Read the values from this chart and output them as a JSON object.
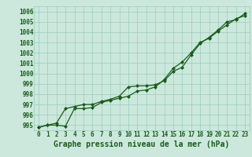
{
  "xlabel": "Graphe pression niveau de la mer (hPa)",
  "xlim": [
    -0.5,
    23.5
  ],
  "ylim": [
    994.5,
    1006.5
  ],
  "yticks": [
    995,
    996,
    997,
    998,
    999,
    1000,
    1001,
    1002,
    1003,
    1004,
    1005,
    1006
  ],
  "xticks": [
    0,
    1,
    2,
    3,
    4,
    5,
    6,
    7,
    8,
    9,
    10,
    11,
    12,
    13,
    14,
    15,
    16,
    17,
    18,
    19,
    20,
    21,
    22,
    23
  ],
  "line1": [
    994.8,
    995.0,
    995.0,
    994.9,
    996.6,
    996.6,
    996.7,
    997.2,
    997.4,
    997.6,
    997.8,
    998.3,
    998.4,
    998.7,
    999.4,
    1000.5,
    1001.1,
    1002.0,
    1003.0,
    1003.4,
    1004.1,
    1004.7,
    1005.3,
    1005.6
  ],
  "line2": [
    994.8,
    995.0,
    995.2,
    996.6,
    996.8,
    997.0,
    997.0,
    997.3,
    997.5,
    997.8,
    998.7,
    998.8,
    998.8,
    998.9,
    999.3,
    1000.2,
    1000.6,
    1001.8,
    1002.9,
    1003.5,
    1004.2,
    1005.0,
    1005.2,
    1005.8
  ],
  "line_color": "#1a5c1a",
  "bg_color": "#cce8dd",
  "grid_color": "#99ccbb",
  "label_color": "#1a5c1a",
  "tick_label_color": "#1a5c1a",
  "marker": "D",
  "marker_size": 2.0,
  "linewidth": 0.9,
  "xlabel_fontsize": 7,
  "tick_fontsize": 5.5
}
